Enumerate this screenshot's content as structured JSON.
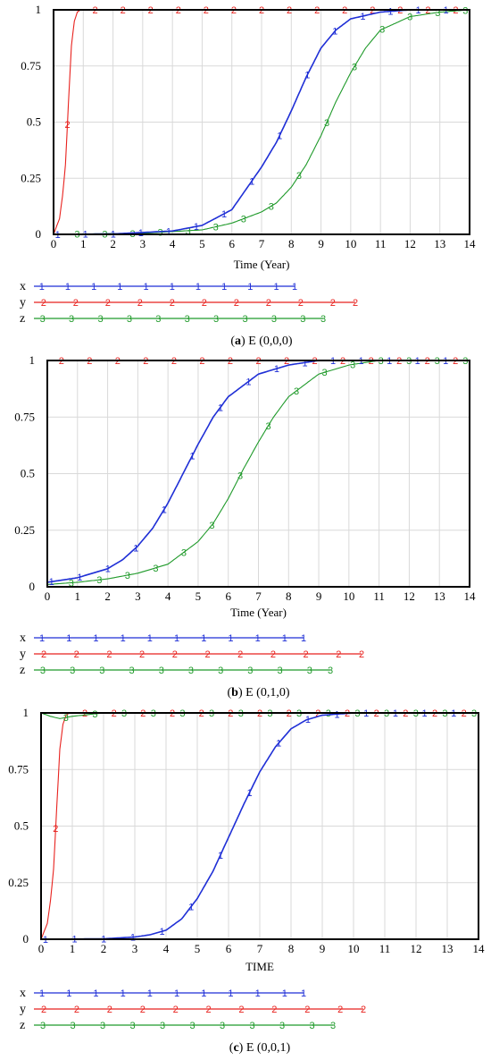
{
  "colors": {
    "x": "#1f2fd6",
    "y": "#e8221e",
    "z": "#1f9a2a",
    "grid": "#d9d9d9",
    "frame": "#000000"
  },
  "legend_markers": {
    "x": "1",
    "y": "2",
    "z": "3"
  },
  "chart_data": [
    {
      "type": "line",
      "caption_letter": "a",
      "caption_text": "E (0,0,0)",
      "xlabel": "Time (Year)",
      "xlim": [
        0,
        14
      ],
      "ylim": [
        0,
        1
      ],
      "x_ticks": [
        "0",
        "1",
        "2",
        "3",
        "4",
        "5",
        "6",
        "7",
        "8",
        "9",
        "10",
        "11",
        "12",
        "13",
        "14"
      ],
      "y_ticks": [
        "0",
        "0.25",
        "0.5",
        "0.75",
        "1"
      ],
      "grid": true,
      "series": [
        {
          "name": "x",
          "marker": "1",
          "x": [
            0,
            2,
            4,
            5,
            6,
            7,
            7.5,
            8,
            8.5,
            9,
            9.5,
            10,
            11,
            12,
            13,
            14
          ],
          "values": [
            0,
            0.002,
            0.015,
            0.04,
            0.11,
            0.3,
            0.41,
            0.55,
            0.7,
            0.83,
            0.91,
            0.96,
            0.99,
            1,
            1,
            1
          ]
        },
        {
          "name": "y",
          "marker": "2",
          "x": [
            0,
            0.2,
            0.3,
            0.4,
            0.5,
            0.6,
            0.7,
            0.8,
            0.9,
            1,
            14
          ],
          "values": [
            0,
            0.07,
            0.17,
            0.31,
            0.58,
            0.84,
            0.95,
            0.99,
            1,
            1,
            1
          ]
        },
        {
          "name": "z",
          "marker": "3",
          "x": [
            0,
            3,
            5,
            6,
            7,
            7.5,
            8,
            8.5,
            9,
            9.5,
            10,
            10.5,
            11,
            12,
            13,
            14
          ],
          "values": [
            0,
            0.005,
            0.02,
            0.05,
            0.1,
            0.14,
            0.21,
            0.31,
            0.44,
            0.59,
            0.72,
            0.83,
            0.91,
            0.97,
            0.99,
            1
          ]
        }
      ]
    },
    {
      "type": "line",
      "caption_letter": "b",
      "caption_text": "E (0,1,0)",
      "xlabel": "Time (Year)",
      "xlim": [
        0,
        14
      ],
      "ylim": [
        0,
        1
      ],
      "x_ticks": [
        "0",
        "1",
        "2",
        "3",
        "4",
        "5",
        "6",
        "7",
        "8",
        "9",
        "10",
        "11",
        "12",
        "13",
        "14"
      ],
      "y_ticks": [
        "0",
        "0.25",
        "0.5",
        "0.75",
        "1"
      ],
      "grid": true,
      "series": [
        {
          "name": "x",
          "marker": "1",
          "x": [
            0,
            1,
            2,
            2.5,
            3,
            3.5,
            4,
            4.5,
            5,
            5.5,
            6,
            7,
            8,
            9,
            10,
            14
          ],
          "values": [
            0.02,
            0.04,
            0.08,
            0.12,
            0.18,
            0.26,
            0.37,
            0.5,
            0.63,
            0.75,
            0.84,
            0.94,
            0.98,
            1,
            1,
            1
          ]
        },
        {
          "name": "y",
          "marker": "2",
          "x": [
            0,
            14
          ],
          "values": [
            1,
            1
          ]
        },
        {
          "name": "z",
          "marker": "3",
          "x": [
            0,
            1,
            2,
            3,
            4,
            5,
            5.5,
            6,
            6.5,
            7,
            7.5,
            8,
            9,
            10,
            11,
            14
          ],
          "values": [
            0.01,
            0.02,
            0.035,
            0.06,
            0.1,
            0.2,
            0.28,
            0.39,
            0.52,
            0.64,
            0.75,
            0.84,
            0.94,
            0.98,
            1,
            1
          ]
        }
      ]
    },
    {
      "type": "line",
      "caption_letter": "c",
      "caption_text": "E (0,0,1)",
      "xlabel": "TIME",
      "xlim": [
        0,
        14
      ],
      "ylim": [
        0,
        1
      ],
      "x_ticks": [
        "0",
        "1",
        "2",
        "3",
        "4",
        "5",
        "6",
        "7",
        "8",
        "9",
        "10",
        "11",
        "12",
        "13",
        "14"
      ],
      "y_ticks": [
        "0",
        "0.25",
        "0.5",
        "0.75",
        "1"
      ],
      "grid": true,
      "series": [
        {
          "name": "x",
          "marker": "1",
          "x": [
            0,
            2,
            3,
            3.5,
            4,
            4.5,
            5,
            5.5,
            6,
            6.5,
            7,
            7.5,
            8,
            8.5,
            9,
            10,
            14
          ],
          "values": [
            0,
            0.002,
            0.01,
            0.02,
            0.04,
            0.09,
            0.18,
            0.3,
            0.45,
            0.6,
            0.74,
            0.85,
            0.93,
            0.97,
            0.99,
            1,
            1
          ]
        },
        {
          "name": "y",
          "marker": "2",
          "x": [
            0,
            0.2,
            0.3,
            0.4,
            0.5,
            0.6,
            0.7,
            0.8,
            0.9,
            1,
            14
          ],
          "values": [
            0,
            0.07,
            0.17,
            0.31,
            0.58,
            0.84,
            0.95,
            0.99,
            1,
            1,
            1
          ]
        },
        {
          "name": "z",
          "marker": "3",
          "x": [
            0,
            0.3,
            0.6,
            1,
            2,
            14
          ],
          "values": [
            1,
            0.985,
            0.975,
            0.985,
            1,
            1
          ]
        }
      ]
    }
  ]
}
